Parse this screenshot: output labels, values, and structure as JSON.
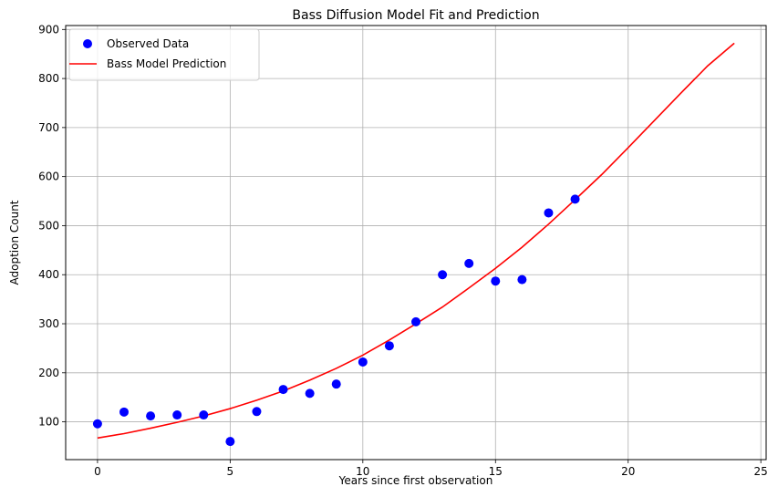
{
  "chart_data": {
    "type": "scatter",
    "title": "Bass Diffusion Model Fit and Prediction",
    "xlabel": "Years since first observation",
    "ylabel": "Adoption Count",
    "xlim": [
      -1.2,
      25.2
    ],
    "ylim": [
      23,
      908
    ],
    "xticks": [
      0,
      5,
      10,
      15,
      20,
      25
    ],
    "yticks": [
      100,
      200,
      300,
      400,
      500,
      600,
      700,
      800,
      900
    ],
    "grid": true,
    "legend_position": "top-left",
    "series": [
      {
        "name": "Observed Data",
        "kind": "scatter",
        "color": "#0000ff",
        "x": [
          0,
          1,
          2,
          3,
          4,
          5,
          6,
          7,
          8,
          9,
          10,
          11,
          12,
          13,
          14,
          15,
          16,
          17,
          18
        ],
        "y": [
          96,
          120,
          112,
          114,
          114,
          60,
          121,
          166,
          158,
          177,
          222,
          255,
          304,
          400,
          423,
          387,
          390,
          526,
          554
        ]
      },
      {
        "name": "Bass Model Prediction",
        "kind": "line",
        "color": "#ff0000",
        "x": [
          0,
          1,
          2,
          3,
          4,
          5,
          6,
          7,
          8,
          9,
          10,
          11,
          12,
          13,
          14,
          15,
          16,
          17,
          18,
          19,
          20,
          21,
          22,
          23,
          24
        ],
        "y": [
          67,
          76,
          87,
          99,
          112,
          127,
          144,
          163,
          185,
          209,
          236,
          267,
          300,
          334,
          373,
          413,
          456,
          503,
          553,
          604,
          659,
          715,
          771,
          826,
          872
        ]
      }
    ]
  }
}
